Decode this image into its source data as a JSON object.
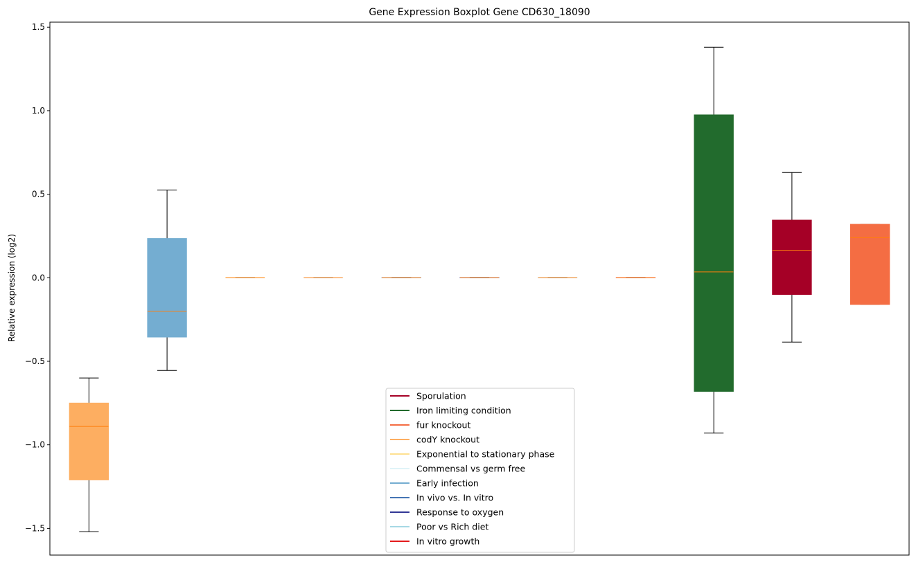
{
  "chart_data": {
    "type": "boxplot",
    "title": "Gene Expression Boxplot Gene CD630_18090",
    "xlabel": "",
    "ylabel": "Relative expression (log2)",
    "ylim": [
      -1.66,
      1.53
    ],
    "yticks": [
      -1.5,
      -1.0,
      -0.5,
      0.0,
      0.5,
      1.0,
      1.5
    ],
    "ytick_labels": [
      "−1.5",
      "−1.0",
      "−0.5",
      "0.0",
      "0.5",
      "1.0",
      "1.5"
    ],
    "grid": false,
    "legend_position": "lower-center",
    "legend": [
      {
        "name": "Sporulation",
        "color": "#a50026"
      },
      {
        "name": "Iron limiting condition",
        "color": "#226b2d"
      },
      {
        "name": "fur knockout",
        "color": "#f46d43"
      },
      {
        "name": "codY knockout",
        "color": "#fdae61"
      },
      {
        "name": "Exponential to stationary phase",
        "color": "#fee090"
      },
      {
        "name": "Commensal vs germ free",
        "color": "#e0f3f8"
      },
      {
        "name": "Early infection",
        "color": "#74add1"
      },
      {
        "name": "In vivo vs. In vitro",
        "color": "#4575b4"
      },
      {
        "name": "Response to oxygen",
        "color": "#313695"
      },
      {
        "name": "Poor vs Rich diet",
        "color": "#a6d8e4"
      },
      {
        "name": "In vitro growth",
        "color": "#e31a1c"
      }
    ],
    "boxes": [
      {
        "color": "#fdae61",
        "whisker_low": -1.52,
        "q1": -1.21,
        "median": -0.89,
        "q3": -0.75,
        "whisker_high": -0.6
      },
      {
        "color": "#74add1",
        "whisker_low": -0.555,
        "q1": -0.355,
        "median": -0.2,
        "q3": 0.235,
        "whisker_high": 0.525
      },
      {
        "color": "#fee090",
        "whisker_low": 0.0,
        "q1": 0.0,
        "median": 0.0,
        "q3": 0.0,
        "whisker_high": 0.0
      },
      {
        "color": "#e0f3f8",
        "whisker_low": 0.0,
        "q1": 0.0,
        "median": 0.0,
        "q3": 0.0,
        "whisker_high": 0.0
      },
      {
        "color": "#4575b4",
        "whisker_low": 0.0,
        "q1": 0.0,
        "median": 0.0,
        "q3": 0.0,
        "whisker_high": 0.0
      },
      {
        "color": "#313695",
        "whisker_low": 0.0,
        "q1": 0.0,
        "median": 0.0,
        "q3": 0.0,
        "whisker_high": 0.0
      },
      {
        "color": "#a6d8e4",
        "whisker_low": 0.0,
        "q1": 0.0,
        "median": 0.0,
        "q3": 0.0,
        "whisker_high": 0.0
      },
      {
        "color": "#e31a1c",
        "whisker_low": 0.0,
        "q1": 0.0,
        "median": 0.0,
        "q3": 0.0,
        "whisker_high": 0.0
      },
      {
        "color": "#226b2d",
        "whisker_low": -0.93,
        "q1": -0.68,
        "median": 0.035,
        "q3": 0.975,
        "whisker_high": 1.38
      },
      {
        "color": "#a50026",
        "whisker_low": -0.385,
        "q1": -0.1,
        "median": 0.165,
        "q3": 0.345,
        "whisker_high": 0.63
      },
      {
        "color": "#f46d43",
        "whisker_low": -0.16,
        "q1": -0.16,
        "median": 0.24,
        "q3": 0.32,
        "whisker_high": 0.32
      }
    ],
    "median_color": "#ff7f0e"
  }
}
